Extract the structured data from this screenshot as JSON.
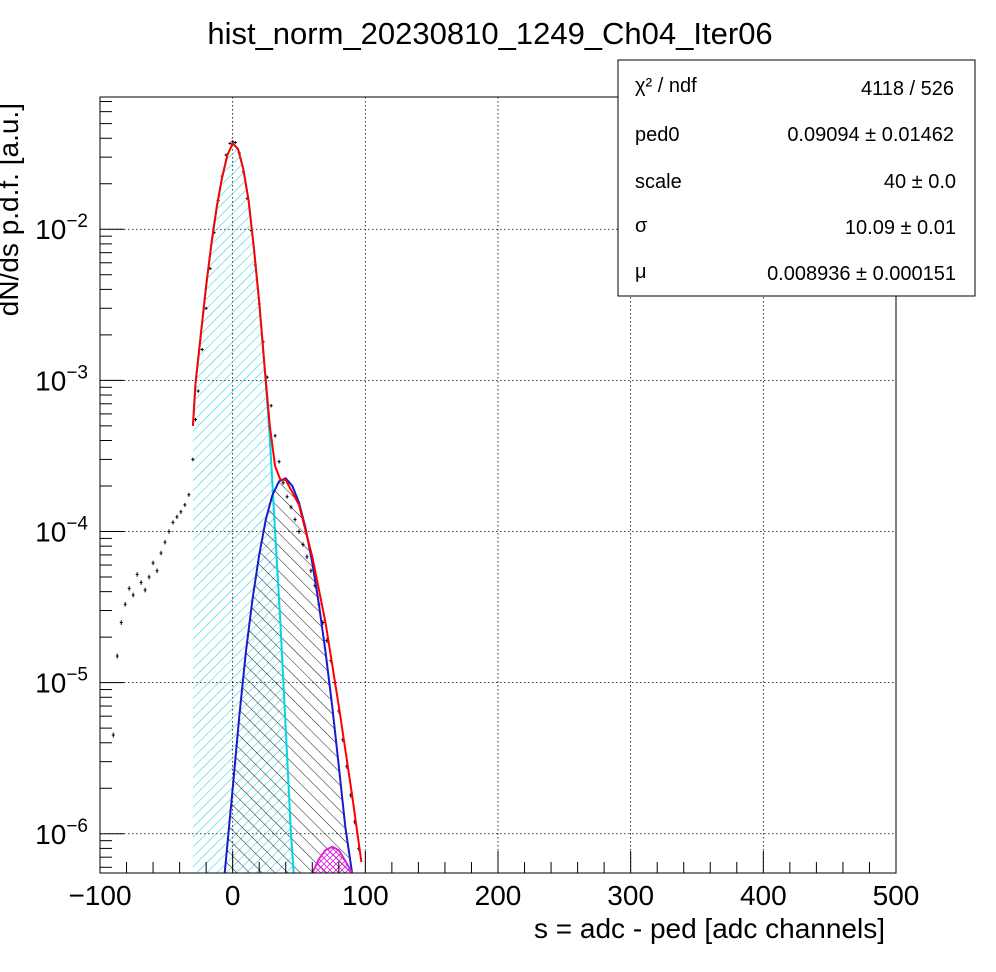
{
  "chart_data": {
    "type": "line",
    "title": "hist_norm_20230810_1249_Ch04_Iter06",
    "xlabel": "s = adc - ped [adc channels]",
    "ylabel": "dN/ds p.d.f. [a.u.]",
    "xlim": [
      -100,
      500
    ],
    "ylim": [
      5.5e-07,
      0.075
    ],
    "yscale": "log",
    "grid": true,
    "x_ticks": [
      {
        "value": -100,
        "label": "−100"
      },
      {
        "value": 0,
        "label": "0"
      },
      {
        "value": 100,
        "label": "100"
      },
      {
        "value": 200,
        "label": "200"
      },
      {
        "value": 300,
        "label": "300"
      },
      {
        "value": 400,
        "label": "400"
      },
      {
        "value": 500,
        "label": "500"
      }
    ],
    "y_ticks": [
      {
        "value": 1e-06,
        "base": "10",
        "exp": "−6"
      },
      {
        "value": 1e-05,
        "base": "10",
        "exp": "−5"
      },
      {
        "value": 0.0001,
        "base": "10",
        "exp": "−4"
      },
      {
        "value": 0.001,
        "base": "10",
        "exp": "−3"
      },
      {
        "value": 0.01,
        "base": "10",
        "exp": "−2"
      }
    ],
    "stats_box": {
      "position": "top-right",
      "rows": [
        {
          "label": "χ² / ndf",
          "value": "4118 / 526"
        },
        {
          "label": "ped0",
          "value": "0.09094  ± 0.01462"
        },
        {
          "label": "scale",
          "value": "40  ± 0.0"
        },
        {
          "label": "σ",
          "value": "10.09  ± 0.01"
        },
        {
          "label": "μ",
          "value": "0.008936  ± 0.000151"
        }
      ]
    },
    "series": [
      {
        "kind": "histogram",
        "color": "#000000",
        "points": [
          [
            -90,
            4.5e-06
          ],
          [
            -87,
            1.5e-05
          ],
          [
            -84,
            2.5e-05
          ],
          [
            -81,
            3.3e-05
          ],
          [
            -78,
            4.2e-05
          ],
          [
            -75,
            3.8e-05
          ],
          [
            -72,
            5.2e-05
          ],
          [
            -69,
            4.6e-05
          ],
          [
            -66,
            4.1e-05
          ],
          [
            -63,
            5e-05
          ],
          [
            -60,
            6.2e-05
          ],
          [
            -57,
            5.5e-05
          ],
          [
            -54,
            7.2e-05
          ],
          [
            -51,
            8.5e-05
          ],
          [
            -48,
            0.0001
          ],
          [
            -45,
            0.000115
          ],
          [
            -42,
            0.000125
          ],
          [
            -39,
            0.000135
          ],
          [
            -36,
            0.00015
          ],
          [
            -33,
            0.000175
          ],
          [
            -30,
            0.0003
          ],
          [
            -28,
            0.00055
          ],
          [
            -26,
            0.00085
          ],
          [
            -23,
            0.0016
          ],
          [
            -20,
            0.003
          ],
          [
            -17,
            0.0055
          ],
          [
            -14,
            0.0095
          ],
          [
            -11,
            0.0155
          ],
          [
            -8,
            0.0225
          ],
          [
            -5,
            0.031
          ],
          [
            -2,
            0.037
          ],
          [
            0,
            0.038
          ],
          [
            2,
            0.0375
          ],
          [
            5,
            0.032
          ],
          [
            8,
            0.024
          ],
          [
            11,
            0.016
          ],
          [
            14,
            0.0098
          ],
          [
            17,
            0.0058
          ],
          [
            20,
            0.0032
          ],
          [
            23,
            0.0018
          ],
          [
            26,
            0.00105
          ],
          [
            29,
            0.00068
          ],
          [
            32,
            0.00043
          ],
          [
            35,
            0.00029
          ],
          [
            38,
            0.00021
          ],
          [
            41,
            0.00017
          ],
          [
            44,
            0.000145
          ],
          [
            47,
            0.00012
          ],
          [
            50,
            0.0001
          ],
          [
            53,
            8.2e-05
          ],
          [
            56,
            6.8e-05
          ],
          [
            59,
            5.5e-05
          ],
          [
            62,
            4.4e-05
          ],
          [
            65,
            3.3e-05
          ],
          [
            68,
            2.5e-05
          ],
          [
            71,
            1.9e-05
          ],
          [
            74,
            1.4e-05
          ],
          [
            77,
            1e-05
          ],
          [
            80,
            6.5e-06
          ],
          [
            83,
            4.2e-06
          ],
          [
            86,
            2.8e-06
          ],
          [
            89,
            1.8e-06
          ],
          [
            92,
            1.2e-06
          ],
          [
            95,
            8e-07
          ]
        ]
      },
      {
        "kind": "fit-total",
        "color": "#ff0000",
        "points": [
          [
            -30,
            0.0005
          ],
          [
            -28,
            0.00095
          ],
          [
            -24,
            0.002
          ],
          [
            -20,
            0.0042
          ],
          [
            -16,
            0.008
          ],
          [
            -12,
            0.014
          ],
          [
            -8,
            0.022
          ],
          [
            -4,
            0.031
          ],
          [
            0,
            0.037
          ],
          [
            4,
            0.034
          ],
          [
            8,
            0.025
          ],
          [
            12,
            0.0155
          ],
          [
            16,
            0.0075
          ],
          [
            20,
            0.0033
          ],
          [
            24,
            0.00125
          ],
          [
            28,
            0.0005
          ],
          [
            32,
            0.00027
          ],
          [
            36,
            0.00022
          ],
          [
            40,
            0.00022
          ],
          [
            50,
            0.00015
          ],
          [
            60,
            6.8e-05
          ],
          [
            70,
            2.5e-05
          ],
          [
            80,
            7e-06
          ],
          [
            90,
            1.8e-06
          ],
          [
            97,
            6.5e-07
          ]
        ]
      },
      {
        "kind": "pedestal-component",
        "color": "#00d6e6",
        "points": [
          [
            -30,
            0.0005
          ],
          [
            -28,
            0.00095
          ],
          [
            -24,
            0.002
          ],
          [
            -20,
            0.0042
          ],
          [
            -16,
            0.008
          ],
          [
            -12,
            0.014
          ],
          [
            -8,
            0.022
          ],
          [
            -4,
            0.031
          ],
          [
            0,
            0.037
          ],
          [
            4,
            0.034
          ],
          [
            8,
            0.025
          ],
          [
            12,
            0.0155
          ],
          [
            16,
            0.0075
          ],
          [
            20,
            0.0033
          ],
          [
            24,
            0.00125
          ],
          [
            28,
            0.00042
          ],
          [
            32,
            0.0001
          ],
          [
            36,
            2.5e-05
          ],
          [
            40,
            5e-06
          ],
          [
            44,
            1e-06
          ],
          [
            46,
            5.5e-07
          ]
        ]
      },
      {
        "kind": "one-pe-component",
        "color": "#1a1acc",
        "points": [
          [
            -6,
            5.5e-07
          ],
          [
            0,
            2e-06
          ],
          [
            5,
            6e-06
          ],
          [
            10,
            1.6e-05
          ],
          [
            15,
            3.6e-05
          ],
          [
            20,
            7e-05
          ],
          [
            25,
            0.00012
          ],
          [
            30,
            0.000175
          ],
          [
            35,
            0.000215
          ],
          [
            40,
            0.000225
          ],
          [
            45,
            0.0002
          ],
          [
            50,
            0.000155
          ],
          [
            55,
            0.000105
          ],
          [
            60,
            6.2e-05
          ],
          [
            65,
            3.3e-05
          ],
          [
            70,
            1.6e-05
          ],
          [
            75,
            7e-06
          ],
          [
            80,
            2.8e-06
          ],
          [
            85,
            1.1e-06
          ],
          [
            90,
            5.5e-07
          ]
        ]
      },
      {
        "kind": "two-pe-component",
        "color": "#dd22dd",
        "points": [
          [
            60,
            5.5e-07
          ],
          [
            65,
            6.8e-07
          ],
          [
            70,
            7.8e-07
          ],
          [
            75,
            8.2e-07
          ],
          [
            80,
            7.8e-07
          ],
          [
            85,
            6.6e-07
          ],
          [
            90,
            5.5e-07
          ]
        ]
      }
    ]
  }
}
